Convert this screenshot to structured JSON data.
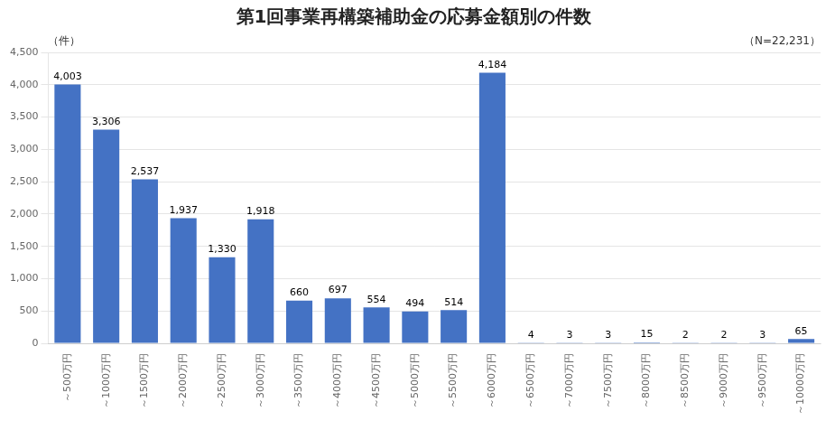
{
  "chart_data": {
    "type": "bar",
    "title": "第1回事業再構築補助金の応募金額別の件数",
    "ylabel": "（件）",
    "annotations": [
      "（N=22,231）"
    ],
    "categories": [
      "～500万円",
      "～1000万円",
      "～1500万円",
      "～2000万円",
      "～2500万円",
      "～3000万円",
      "～3500万円",
      "～4000万円",
      "～4500万円",
      "～5000万円",
      "～5500万円",
      "～6000万円",
      "～6500万円",
      "～7000万円",
      "～7500万円",
      "～8000万円",
      "～8500万円",
      "～9000万円",
      "～9500万円",
      "～10000万円"
    ],
    "values": [
      4003,
      3306,
      2537,
      1937,
      1330,
      1918,
      660,
      697,
      554,
      494,
      514,
      4184,
      4,
      3,
      3,
      15,
      2,
      2,
      3,
      65
    ],
    "value_labels": [
      "4,003",
      "3,306",
      "2,537",
      "1,937",
      "1,330",
      "1,918",
      "660",
      "697",
      "554",
      "494",
      "514",
      "4,184",
      "4",
      "3",
      "3",
      "15",
      "2",
      "2",
      "3",
      "65"
    ],
    "data_labels": true,
    "color": "#4472C4",
    "ylim": [
      0,
      4500
    ],
    "yticks": [
      0,
      500,
      {
        "value": 1000,
        "label": "1,000"
      },
      {
        "value": 1500,
        "label": "1,500"
      },
      {
        "value": 2000,
        "label": "2,000"
      },
      {
        "value": 2500,
        "label": "2,500"
      },
      {
        "value": 3000,
        "label": "3,000"
      },
      {
        "value": 3500,
        "label": "3,500"
      },
      {
        "value": 4000,
        "label": "4,000"
      },
      {
        "value": 4500,
        "label": "4,500"
      }
    ],
    "grid": true
  }
}
